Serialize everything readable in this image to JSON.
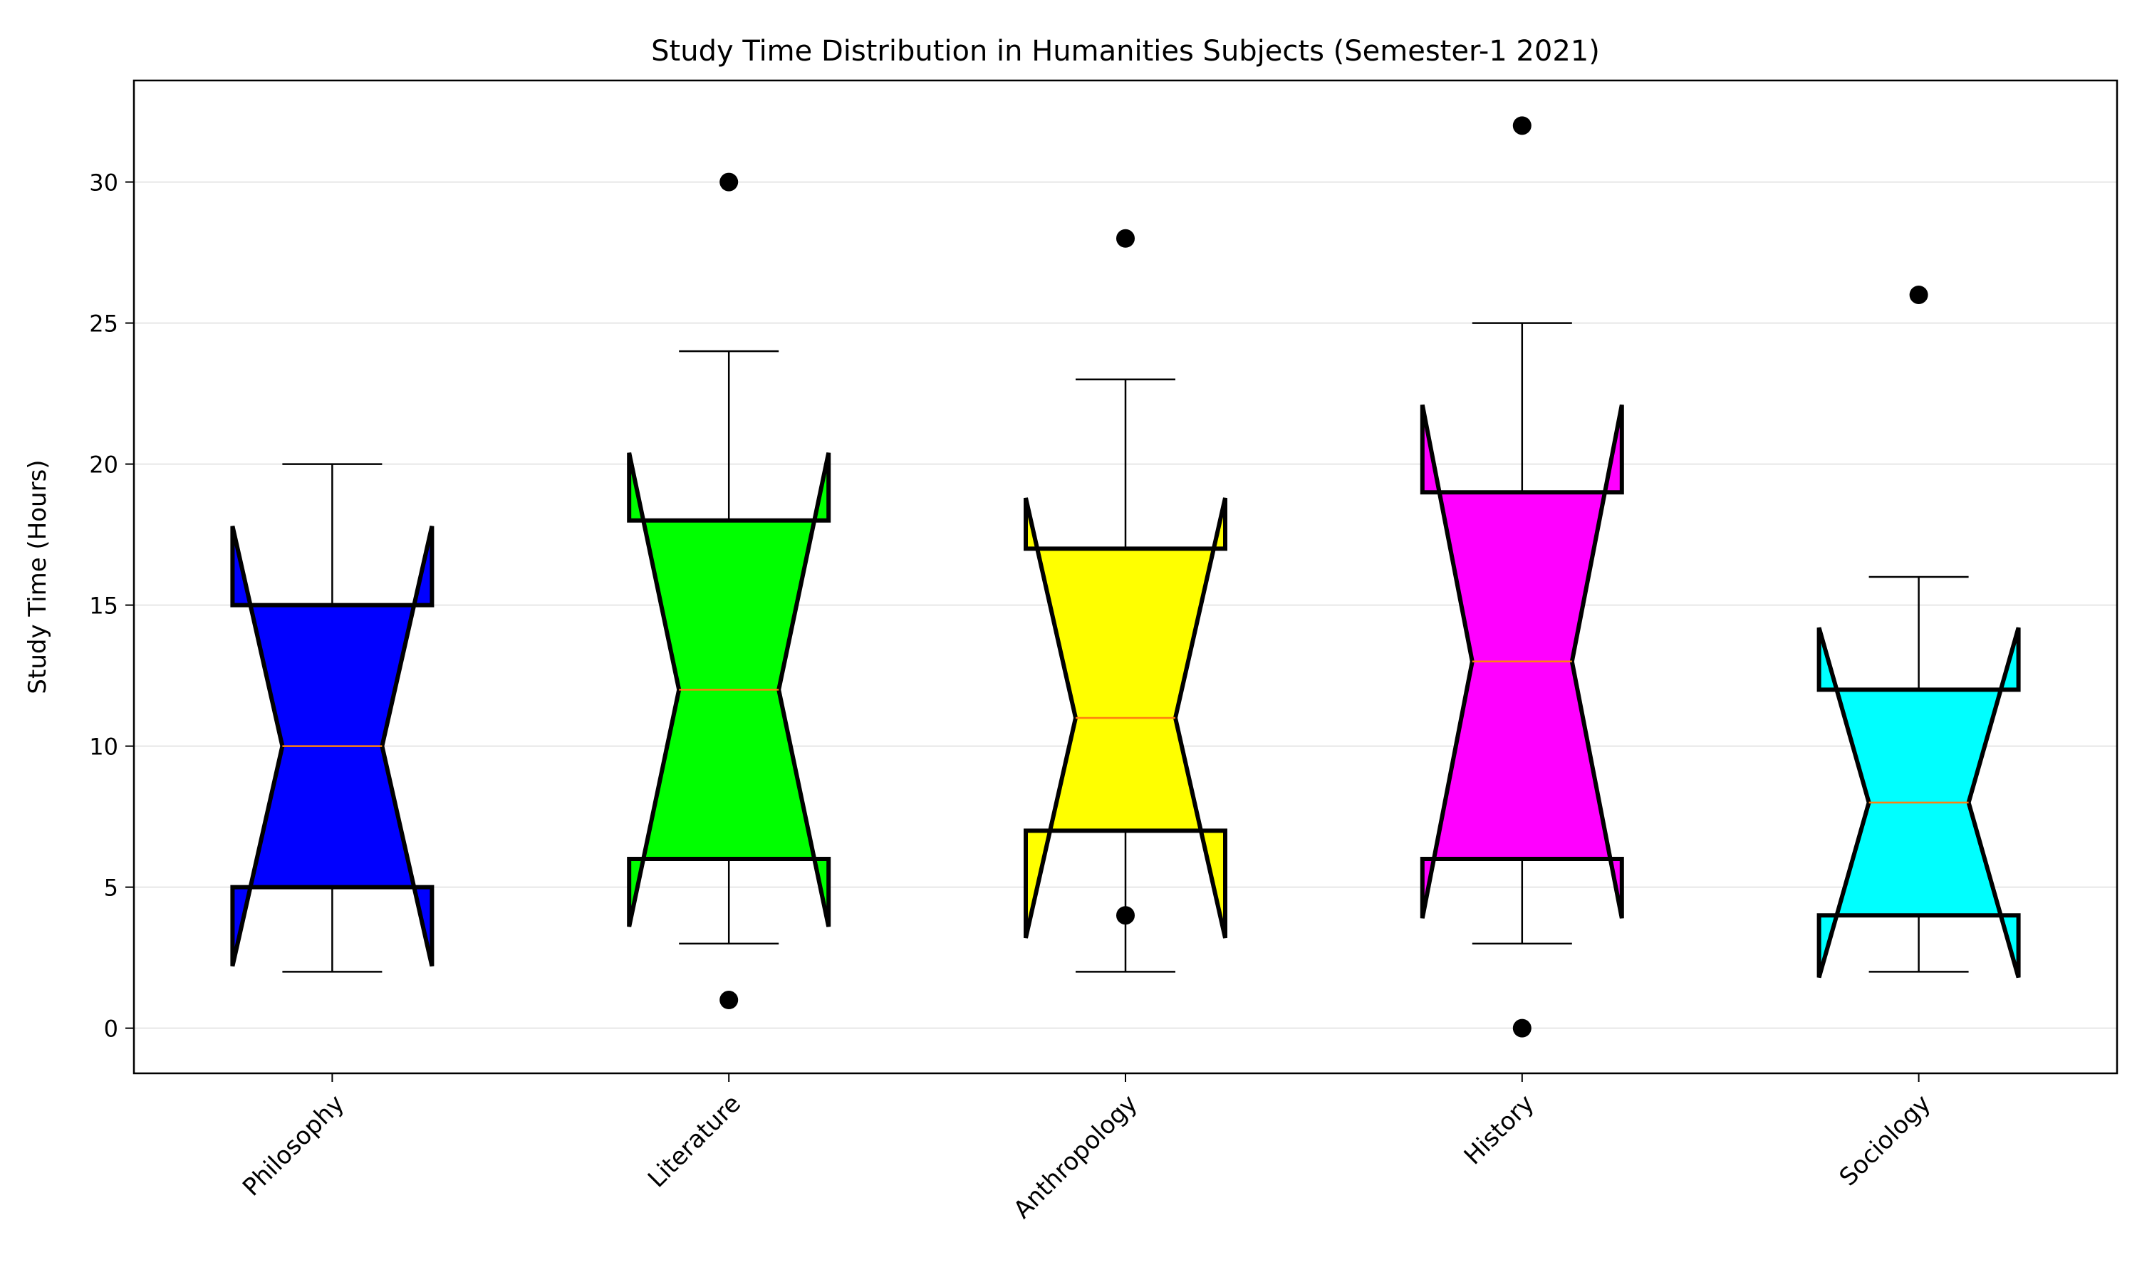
{
  "chart_data": {
    "type": "box",
    "variant": "notched",
    "title": "Study Time Distribution in Humanities Subjects (Semester-1 2021)",
    "xlabel": "",
    "ylabel": "Study Time (Hours)",
    "ylim": [
      -1.6,
      33.6
    ],
    "yticks": [
      0,
      5,
      10,
      15,
      20,
      25,
      30
    ],
    "ytick_labels": [
      "0",
      "5",
      "10",
      "15",
      "20",
      "25",
      "30"
    ],
    "grid": "horizontal",
    "categories": [
      "Philosophy",
      "Literature",
      "Anthropology",
      "History",
      "Sociology"
    ],
    "boxes": [
      {
        "category": "Philosophy",
        "whisker_low": 2,
        "q1": 5,
        "median": 10,
        "q3": 15,
        "whisker_high": 20,
        "notch_low": 2.2,
        "notch_high": 17.8,
        "outliers": [],
        "color": "#0000ff"
      },
      {
        "category": "Literature",
        "whisker_low": 3,
        "q1": 6,
        "median": 12,
        "q3": 18,
        "whisker_high": 24,
        "notch_low": 3.6,
        "notch_high": 20.4,
        "outliers": [
          1,
          30
        ],
        "color": "#00ff00"
      },
      {
        "category": "Anthropology",
        "whisker_low": 2,
        "q1": 7,
        "median": 11,
        "q3": 17,
        "whisker_high": 23,
        "notch_low": 3.2,
        "notch_high": 18.8,
        "outliers": [
          4,
          28
        ],
        "color": "#ffff00"
      },
      {
        "category": "History",
        "whisker_low": 3,
        "q1": 6,
        "median": 13,
        "q3": 19,
        "whisker_high": 25,
        "notch_low": 3.9,
        "notch_high": 22.1,
        "outliers": [
          0,
          32
        ],
        "color": "#ff00ff"
      },
      {
        "category": "Sociology",
        "whisker_low": 2,
        "q1": 4,
        "median": 8,
        "q3": 12,
        "whisker_high": 16,
        "notch_low": 1.8,
        "notch_high": 14.2,
        "outliers": [
          26
        ],
        "color": "#00ffff"
      }
    ],
    "median_color": "#ff7f0e",
    "outlier_color": "#000000"
  }
}
